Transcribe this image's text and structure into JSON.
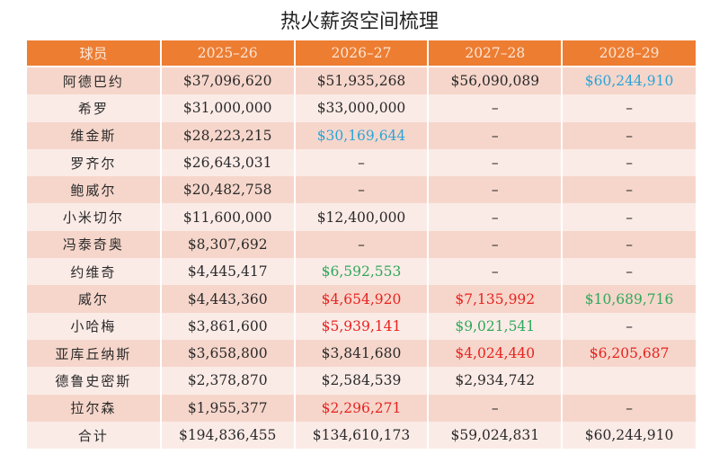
{
  "title": "热火薪资空间梳理",
  "colors": {
    "header": "#ed7d31",
    "row_dark": "#f6d6cb",
    "row_light": "#fbebe7",
    "blue": "#2aa4d8",
    "green": "#2ea85a",
    "red": "#e8221f"
  },
  "columns": [
    "球员",
    "2025–26",
    "2026–27",
    "2027–28",
    "2028–29"
  ],
  "rows": [
    {
      "name": "阿德巴约",
      "cells": [
        {
          "v": "$37,096,620"
        },
        {
          "v": "$51,935,268"
        },
        {
          "v": "$56,090,089"
        },
        {
          "v": "$60,244,910",
          "c": "blue"
        }
      ]
    },
    {
      "name": "希罗",
      "cells": [
        {
          "v": "$31,000,000"
        },
        {
          "v": "$33,000,000"
        },
        {
          "v": "–"
        },
        {
          "v": "–"
        }
      ]
    },
    {
      "name": "维金斯",
      "cells": [
        {
          "v": "$28,223,215"
        },
        {
          "v": "$30,169,644",
          "c": "blue"
        },
        {
          "v": "–"
        },
        {
          "v": "–"
        }
      ]
    },
    {
      "name": "罗齐尔",
      "cells": [
        {
          "v": "$26,643,031"
        },
        {
          "v": "–"
        },
        {
          "v": "–"
        },
        {
          "v": "–"
        }
      ]
    },
    {
      "name": "鲍威尔",
      "cells": [
        {
          "v": "$20,482,758"
        },
        {
          "v": "–"
        },
        {
          "v": "–"
        },
        {
          "v": "–"
        }
      ]
    },
    {
      "name": "小米切尔",
      "cells": [
        {
          "v": "$11,600,000"
        },
        {
          "v": "$12,400,000"
        },
        {
          "v": "–"
        },
        {
          "v": "–"
        }
      ]
    },
    {
      "name": "冯泰奇奥",
      "cells": [
        {
          "v": "$8,307,692"
        },
        {
          "v": "–"
        },
        {
          "v": "–"
        },
        {
          "v": "–"
        }
      ]
    },
    {
      "name": "约维奇",
      "cells": [
        {
          "v": "$4,445,417"
        },
        {
          "v": "$6,592,553",
          "c": "green"
        },
        {
          "v": "–"
        },
        {
          "v": "–"
        }
      ]
    },
    {
      "name": "威尔",
      "cells": [
        {
          "v": "$4,443,360"
        },
        {
          "v": "$4,654,920",
          "c": "red"
        },
        {
          "v": "$7,135,992",
          "c": "red"
        },
        {
          "v": "$10,689,716",
          "c": "green"
        }
      ]
    },
    {
      "name": "小哈梅",
      "cells": [
        {
          "v": "$3,861,600"
        },
        {
          "v": "$5,939,141",
          "c": "red"
        },
        {
          "v": "$9,021,541",
          "c": "green"
        },
        {
          "v": "–"
        }
      ]
    },
    {
      "name": "亚库丘纳斯",
      "cells": [
        {
          "v": "$3,658,800"
        },
        {
          "v": "$3,841,680"
        },
        {
          "v": "$4,024,440",
          "c": "red"
        },
        {
          "v": "$6,205,687",
          "c": "red"
        }
      ]
    },
    {
      "name": "德鲁史密斯",
      "cells": [
        {
          "v": "$2,378,870"
        },
        {
          "v": "$2,584,539"
        },
        {
          "v": "$2,934,742"
        },
        {
          "v": ""
        }
      ]
    },
    {
      "name": "拉尔森",
      "cells": [
        {
          "v": "$1,955,377"
        },
        {
          "v": "$2,296,271",
          "c": "red"
        },
        {
          "v": "–"
        },
        {
          "v": "–"
        }
      ]
    },
    {
      "name": "合计",
      "cells": [
        {
          "v": "$194,836,455"
        },
        {
          "v": "$134,610,173"
        },
        {
          "v": "$59,024,831"
        },
        {
          "v": "$60,244,910"
        }
      ]
    }
  ]
}
